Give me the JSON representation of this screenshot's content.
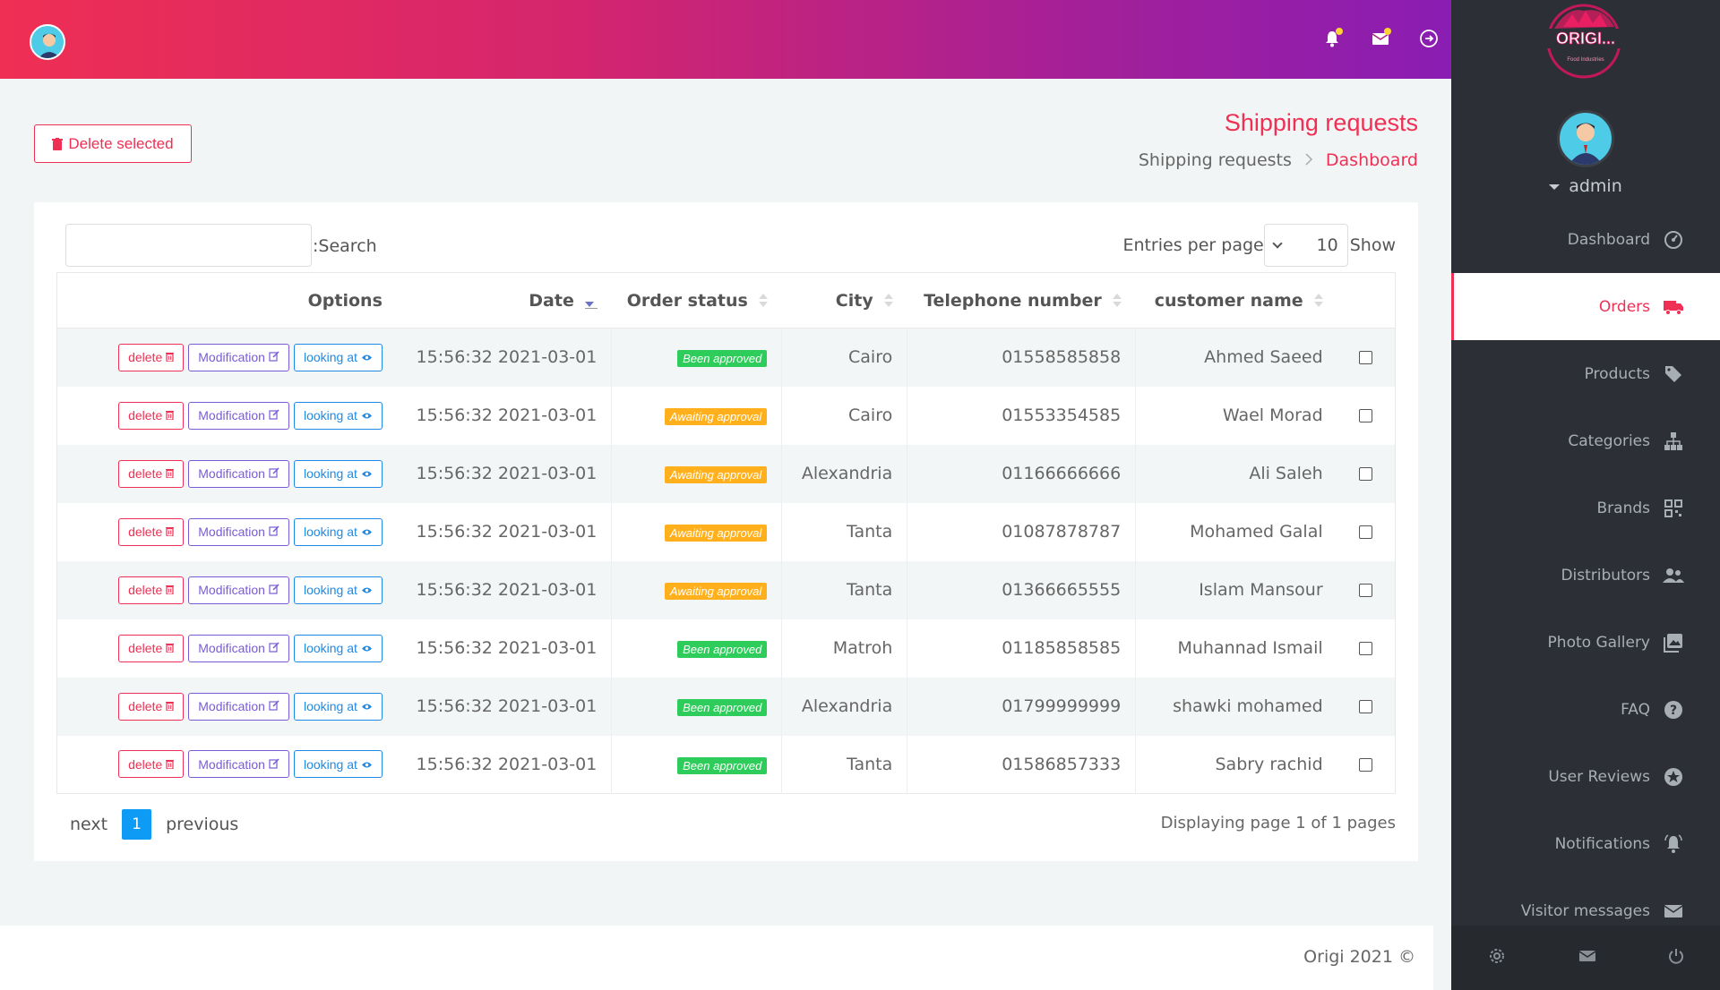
{
  "header": {
    "icons": [
      "bell-icon",
      "envelope-icon",
      "logout-icon"
    ]
  },
  "sidebar": {
    "logo_text": "ORIGI...",
    "logo_subtext": "Food Industries",
    "user": "admin",
    "items": [
      {
        "label": "Dashboard",
        "icon": "dashboard-gauge-icon"
      },
      {
        "label": "Orders",
        "icon": "truck-icon",
        "active": true
      },
      {
        "label": "Products",
        "icon": "tag-icon"
      },
      {
        "label": "Categories",
        "icon": "sitemap-icon"
      },
      {
        "label": "Brands",
        "icon": "qrcode-icon"
      },
      {
        "label": "Distributors",
        "icon": "users-icon"
      },
      {
        "label": "Photo Gallery",
        "icon": "images-icon"
      },
      {
        "label": "FAQ",
        "icon": "question-circle-icon"
      },
      {
        "label": "User Reviews",
        "icon": "star-circle-icon"
      },
      {
        "label": "Notifications",
        "icon": "bell-ring-icon"
      },
      {
        "label": "Visitor messages",
        "icon": "envelope-icon"
      }
    ],
    "bottom_icons": [
      "gear-icon",
      "envelope-icon",
      "power-icon"
    ]
  },
  "toolbar": {
    "delete_selected": "Delete selected"
  },
  "page": {
    "title": "Shipping requests",
    "breadcrumb": [
      "Shipping requests",
      "Dashboard"
    ]
  },
  "table_controls": {
    "search_label": ":Search",
    "entries_label": "Entries per page",
    "entries_value": "10",
    "show_label": "Show"
  },
  "table": {
    "headers": {
      "options": "Options",
      "date": "Date",
      "status": "Order status",
      "city": "City",
      "phone": "Telephone number",
      "name": "customer name"
    },
    "buttons": {
      "delete": "delete",
      "modify": "Modification",
      "look": "looking at"
    },
    "rows": [
      {
        "date": "15:56:32 2021-03-01",
        "status": "Been approved",
        "status_kind": "ok",
        "city": "Cairo",
        "phone": "01558585858",
        "name": "Ahmed Saeed"
      },
      {
        "date": "15:56:32 2021-03-01",
        "status": "Awaiting approval",
        "status_kind": "wait",
        "city": "Cairo",
        "phone": "01553354585",
        "name": "Wael Morad"
      },
      {
        "date": "15:56:32 2021-03-01",
        "status": "Awaiting approval",
        "status_kind": "wait",
        "city": "Alexandria",
        "phone": "01166666666",
        "name": "Ali Saleh"
      },
      {
        "date": "15:56:32 2021-03-01",
        "status": "Awaiting approval",
        "status_kind": "wait",
        "city": "Tanta",
        "phone": "01087878787",
        "name": "Mohamed Galal"
      },
      {
        "date": "15:56:32 2021-03-01",
        "status": "Awaiting approval",
        "status_kind": "wait",
        "city": "Tanta",
        "phone": "01366665555",
        "name": "Islam Mansour"
      },
      {
        "date": "15:56:32 2021-03-01",
        "status": "Been approved",
        "status_kind": "ok",
        "city": "Matroh",
        "phone": "01185858585",
        "name": "Muhannad Ismail"
      },
      {
        "date": "15:56:32 2021-03-01",
        "status": "Been approved",
        "status_kind": "ok",
        "city": "Alexandria",
        "phone": "01799999999",
        "name": "shawki mohamed"
      },
      {
        "date": "15:56:32 2021-03-01",
        "status": "Been approved",
        "status_kind": "ok",
        "city": "Tanta",
        "phone": "01586857333",
        "name": "Sabry rachid"
      }
    ]
  },
  "pagination": {
    "next": "next",
    "current": "1",
    "previous": "previous",
    "info": "Displaying page 1 of 1 pages"
  },
  "footer": {
    "text": "Origi 2021 ©"
  },
  "colors": {
    "accent": "#ef2f53",
    "approved": "#2ecc5a",
    "awaiting": "#ffb01c",
    "sidebar": "#2c3036"
  }
}
